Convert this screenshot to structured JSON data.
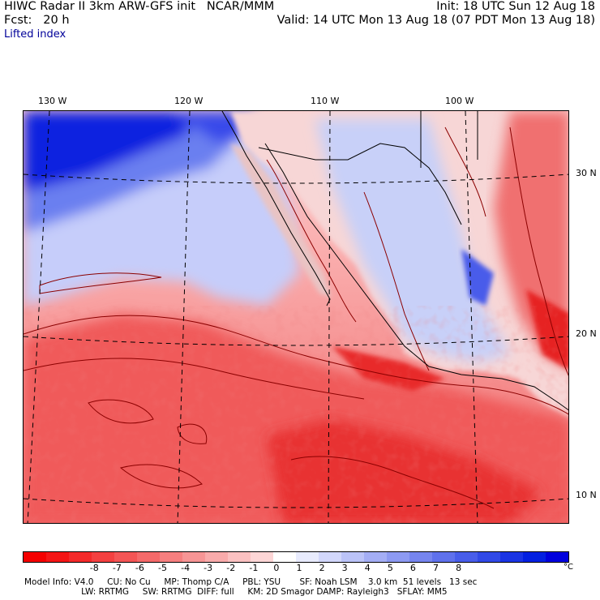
{
  "header": {
    "left_line1": "HIWC Radar II 3km ARW-GFS init   NCAR/MMM",
    "left_line2": "Fcst:   20 h",
    "right_line1": "Init: 18 UTC Sun 12 Aug 18",
    "right_line2": "Valid: 14 UTC Mon 13 Aug 18 (07 PDT Mon 13 Aug 18)",
    "field": "Lifted index"
  },
  "map": {
    "lon_labels": [
      "130 W",
      "120 W",
      "110 W",
      "100 W"
    ],
    "lat_labels": [
      "30 N",
      "20 N",
      "10 N"
    ],
    "colors": {
      "deep_blue": "#0a14e0",
      "mid_blue": "#6a7ff0",
      "light_blue": "#d6dcfc",
      "light_red": "#ffc8c8",
      "mid_red": "#f47a7a",
      "deep_red": "#e62626",
      "contour": "#8b0000",
      "border": "#000000"
    }
  },
  "colorbar": {
    "ticks": [
      "-8",
      "-7",
      "-6",
      "-5",
      "-4",
      "-3",
      "-2",
      "-1",
      "0",
      "1",
      "2",
      "3",
      "4",
      "5",
      "6",
      "7",
      "8"
    ],
    "unit": "°C",
    "colors": [
      "#f50000",
      "#f51515",
      "#f42a2a",
      "#f44040",
      "#f45555",
      "#f56a6a",
      "#f67f7f",
      "#f79595",
      "#f9abab",
      "#fbc1c1",
      "#fdd6d6",
      "#ffffff",
      "#e8ebfd",
      "#d2d7fb",
      "#bbc3f8",
      "#a4aef5",
      "#8d9af2",
      "#7685ef",
      "#5f71ec",
      "#485dea",
      "#3149e7",
      "#1a34e4",
      "#0320e1",
      "#0000dd"
    ]
  },
  "footer": {
    "line1": "Model Info: V4.0     CU: No Cu     MP: Thomp C/A     PBL: YSU       SF: Noah LSM    3.0 km  51 levels   13 sec",
    "line2": "                     LW: RRTMG     SW: RRTMG  DIFF: full     KM: 2D Smagor DAMP: Rayleigh3   SFLAY: MM5"
  }
}
